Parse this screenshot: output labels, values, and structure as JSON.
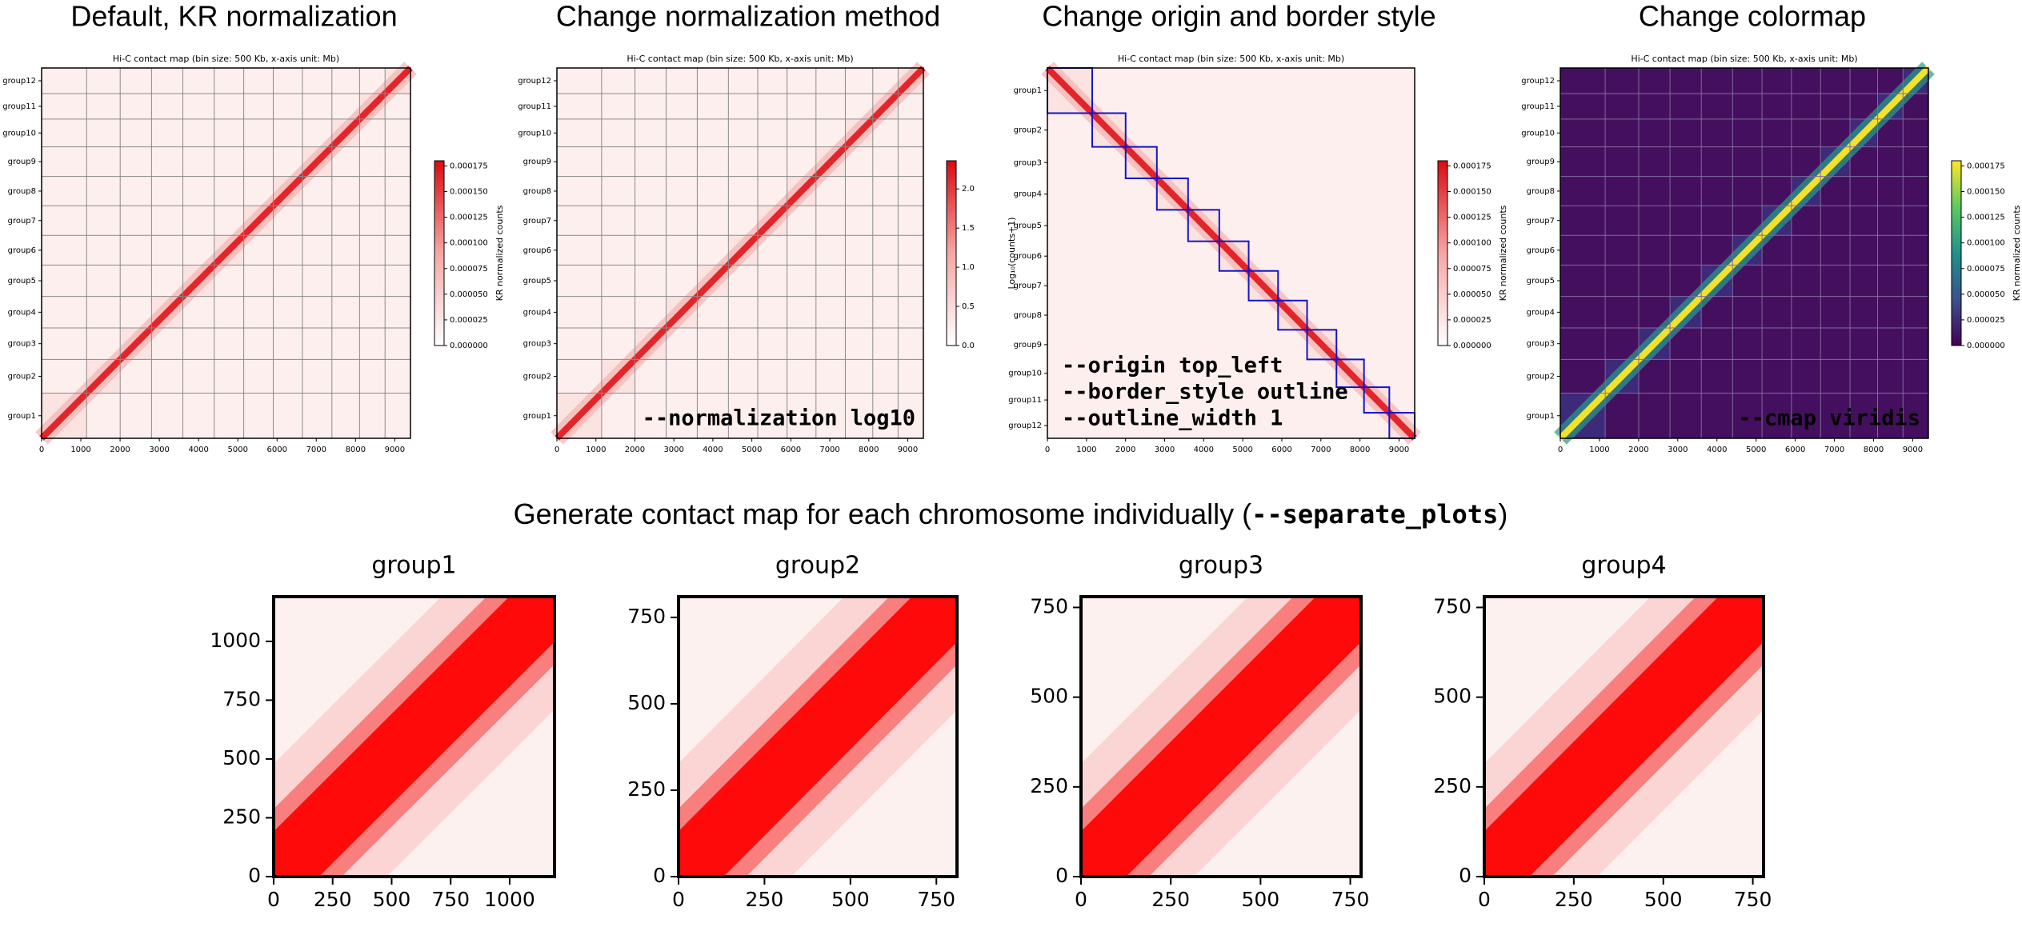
{
  "chart_data": [
    {
      "type": "heatmap",
      "title": "Default, KR normalization",
      "subtitle": "Hi-C contact map (bin size: 500 Kb, x-axis unit: Mb)",
      "categories": [
        "group12",
        "group11",
        "group10",
        "group9",
        "group8",
        "group7",
        "group6",
        "group5",
        "group4",
        "group3",
        "group2",
        "group1"
      ],
      "xlim": [
        0,
        9400
      ],
      "xticks": [
        0,
        1000,
        2000,
        3000,
        4000,
        5000,
        6000,
        7000,
        8000,
        9000
      ],
      "colormap": "reds",
      "origin": "bottom_left",
      "border_style": "lines",
      "colorbar": {
        "label": "KR normalized counts",
        "lim": [
          0,
          0.00018
        ],
        "ticks": [
          {
            "value": 0,
            "label": "0.000000"
          },
          2.5e-05,
          {
            "value": 5e-05,
            "label": "0.000050"
          },
          7.5e-05,
          {
            "value": 0.0001,
            "label": "0.000100"
          },
          0.000125,
          {
            "value": 0.00015,
            "label": "0.000150"
          },
          0.000175
        ]
      }
    },
    {
      "type": "heatmap",
      "title": "Change normalization method",
      "subtitle": "Hi-C contact map (bin size: 500 Kb, x-axis unit: Mb)",
      "categories": [
        "group12",
        "group11",
        "group10",
        "group9",
        "group8",
        "group7",
        "group6",
        "group5",
        "group4",
        "group3",
        "group2",
        "group1"
      ],
      "xlim": [
        0,
        9400
      ],
      "xticks": [
        0,
        1000,
        2000,
        3000,
        4000,
        5000,
        6000,
        7000,
        8000,
        9000
      ],
      "colormap": "reds",
      "origin": "bottom_left",
      "border_style": "lines",
      "annotation": [
        "--normalization log10"
      ],
      "colorbar": {
        "label": "Log₁₀(counts+1)",
        "lim": [
          0,
          2.36
        ],
        "ticks": [
          {
            "value": 0,
            "label": "0.0"
          },
          0.5,
          {
            "value": 1,
            "label": "1.0"
          },
          1.5,
          {
            "value": 2,
            "label": "2.0"
          }
        ]
      }
    },
    {
      "type": "heatmap",
      "title": "Change origin and border style",
      "subtitle": "Hi-C contact map (bin size: 500 Kb, x-axis unit: Mb)",
      "categories": [
        "group1",
        "group2",
        "group3",
        "group4",
        "group5",
        "group6",
        "group7",
        "group8",
        "group9",
        "group10",
        "group11",
        "group12"
      ],
      "xlim": [
        0,
        9400
      ],
      "xticks": [
        0,
        1000,
        2000,
        3000,
        4000,
        5000,
        6000,
        7000,
        8000,
        9000
      ],
      "colormap": "reds",
      "origin": "top_left",
      "border_style": "outline",
      "outline_color": "#1414c8",
      "annotation": [
        "--origin top_left",
        "--border_style outline",
        "--outline_width 1"
      ],
      "colorbar": {
        "label": "KR normalized counts",
        "lim": [
          0,
          0.00018
        ],
        "ticks": [
          {
            "value": 0,
            "label": "0.000000"
          },
          2.5e-05,
          {
            "value": 5e-05,
            "label": "0.000050"
          },
          7.5e-05,
          {
            "value": 0.0001,
            "label": "0.000100"
          },
          0.000125,
          {
            "value": 0.00015,
            "label": "0.000150"
          },
          0.000175
        ]
      }
    },
    {
      "type": "heatmap",
      "title": "Change colormap",
      "subtitle": "Hi-C contact map (bin size: 500 Kb, x-axis unit: Mb)",
      "categories": [
        "group12",
        "group11",
        "group10",
        "group9",
        "group8",
        "group7",
        "group6",
        "group5",
        "group4",
        "group3",
        "group2",
        "group1"
      ],
      "xlim": [
        0,
        9400
      ],
      "xticks": [
        0,
        1000,
        2000,
        3000,
        4000,
        5000,
        6000,
        7000,
        8000,
        9000
      ],
      "colormap": "viridis",
      "origin": "bottom_left",
      "border_style": "lines",
      "annotation": [
        "--cmap viridis"
      ],
      "colorbar": {
        "label": "KR normalized counts",
        "lim": [
          0,
          0.00018
        ],
        "ticks": [
          {
            "value": 0,
            "label": "0.000000"
          },
          2.5e-05,
          {
            "value": 5e-05,
            "label": "0.000050"
          },
          7.5e-05,
          {
            "value": 0.0001,
            "label": "0.000100"
          },
          0.000125,
          {
            "value": 0.00015,
            "label": "0.000150"
          },
          0.000175
        ]
      }
    },
    {
      "type": "heatmap",
      "title": "group1",
      "xlim": [
        0,
        1190
      ],
      "ylim": [
        0,
        1190
      ],
      "xticks": [
        0,
        250,
        500,
        750,
        1000
      ],
      "yticks": [
        0,
        250,
        500,
        750,
        1000
      ]
    },
    {
      "type": "heatmap",
      "title": "group2",
      "xlim": [
        0,
        810
      ],
      "ylim": [
        0,
        810
      ],
      "xticks": [
        0,
        250,
        500,
        750
      ],
      "yticks": [
        0,
        250,
        500,
        750
      ]
    },
    {
      "type": "heatmap",
      "title": "group3",
      "xlim": [
        0,
        780
      ],
      "ylim": [
        0,
        780
      ],
      "xticks": [
        0,
        250,
        500,
        750
      ],
      "yticks": [
        0,
        250,
        500,
        750
      ]
    },
    {
      "type": "heatmap",
      "title": "group4",
      "xlim": [
        0,
        780
      ],
      "ylim": [
        0,
        780
      ],
      "xticks": [
        0,
        250,
        500,
        750
      ],
      "yticks": [
        0,
        250,
        500,
        750
      ]
    }
  ],
  "section_heading": {
    "text": "Generate contact map for each chromosome individually (",
    "code": "--separate_plots",
    "end": ")"
  }
}
